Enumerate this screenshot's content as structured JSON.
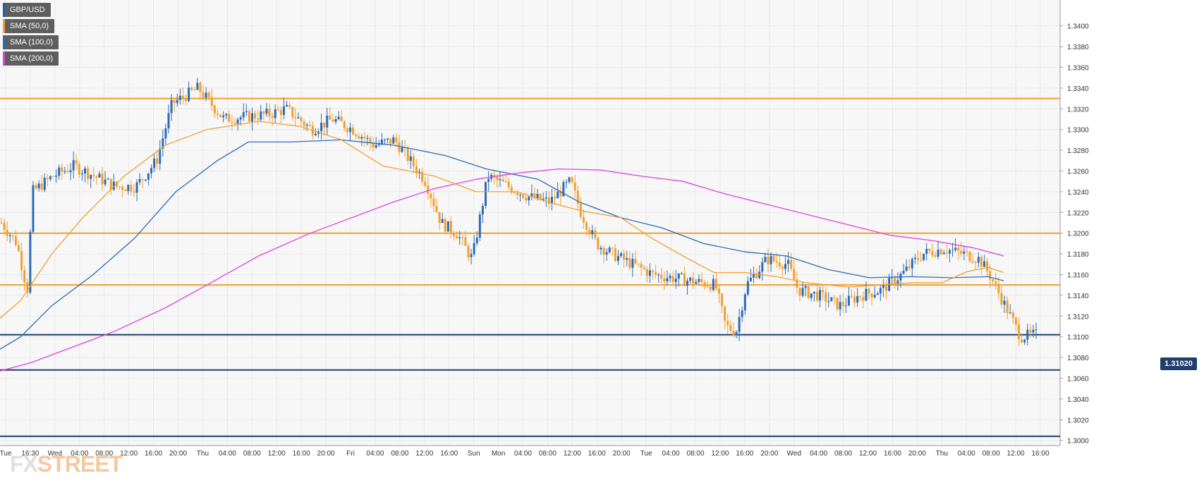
{
  "legend": [
    {
      "label": "GBP/USD",
      "color": "#1f5fb5"
    },
    {
      "label": "SMA (50,0)",
      "color": "#f0a030"
    },
    {
      "label": "SMA (100,0)",
      "color": "#2d6bb5"
    },
    {
      "label": "SMA (200,0)",
      "color": "#e040e0"
    }
  ],
  "watermark": {
    "part1": "FX",
    "part2": "STREET"
  },
  "current_price_label": "1.31020",
  "colors": {
    "bull": "#2d6bb5",
    "bear": "#f0a030",
    "sma50": "#f0a030",
    "sma100": "#2d6bb5",
    "sma200": "#e040e0",
    "level_orange": "#f0a030",
    "level_navy": "#1f3e6b",
    "grid": "#e8e8e8",
    "axis_text": "#333333"
  },
  "chart_data": {
    "type": "candlestick",
    "y_axis": {
      "min": 1.2995,
      "max": 1.3425,
      "ticks": [
        "1.3000",
        "1.3020",
        "1.3040",
        "1.3060",
        "1.3080",
        "1.3100",
        "1.3120",
        "1.3140",
        "1.3160",
        "1.3180",
        "1.3200",
        "1.3220",
        "1.3240",
        "1.3260",
        "1.3280",
        "1.3300",
        "1.3320",
        "1.3340",
        "1.3360",
        "1.3380",
        "1.3400"
      ]
    },
    "x_ticks": [
      "Tue",
      "16:30",
      "Wed",
      "04:00",
      "08:00",
      "12:00",
      "16:00",
      "20:00",
      "Thu",
      "04:00",
      "08:00",
      "12:00",
      "16:00",
      "20:00",
      "Fri",
      "04:00",
      "08:00",
      "12:00",
      "16:00",
      "Sun",
      "Mon",
      "04:00",
      "08:00",
      "12:00",
      "16:00",
      "20:00",
      "Tue",
      "04:00",
      "08:00",
      "12:00",
      "16:00",
      "20:00",
      "Wed",
      "04:00",
      "08:00",
      "12:00",
      "16:00",
      "20:00",
      "Thu",
      "04:00",
      "08:00",
      "12:00",
      "16:00"
    ],
    "horizontal_levels": [
      {
        "value": 1.333,
        "kind": "resistance"
      },
      {
        "value": 1.32,
        "kind": "resistance"
      },
      {
        "value": 1.315,
        "kind": "resistance"
      },
      {
        "value": 1.3102,
        "kind": "current"
      },
      {
        "value": 1.3068,
        "kind": "support"
      },
      {
        "value": 1.3004,
        "kind": "support"
      }
    ],
    "price_path": [
      [
        0,
        1.321
      ],
      [
        0.015,
        1.319
      ],
      [
        0.025,
        1.3145
      ],
      [
        0.03,
        1.324
      ],
      [
        0.05,
        1.3255
      ],
      [
        0.07,
        1.3265
      ],
      [
        0.09,
        1.3255
      ],
      [
        0.11,
        1.3245
      ],
      [
        0.13,
        1.3245
      ],
      [
        0.15,
        1.327
      ],
      [
        0.165,
        1.3325
      ],
      [
        0.19,
        1.334
      ],
      [
        0.215,
        1.331
      ],
      [
        0.26,
        1.3315
      ],
      [
        0.275,
        1.332
      ],
      [
        0.3,
        1.33
      ],
      [
        0.32,
        1.331
      ],
      [
        0.34,
        1.33
      ],
      [
        0.36,
        1.3285
      ],
      [
        0.38,
        1.329
      ],
      [
        0.41,
        1.325
      ],
      [
        0.425,
        1.321
      ],
      [
        0.44,
        1.32
      ],
      [
        0.455,
        1.3175
      ],
      [
        0.47,
        1.3255
      ],
      [
        0.49,
        1.3245
      ],
      [
        0.51,
        1.3235
      ],
      [
        0.53,
        1.323
      ],
      [
        0.55,
        1.325
      ],
      [
        0.56,
        1.322
      ],
      [
        0.575,
        1.319
      ],
      [
        0.59,
        1.318
      ],
      [
        0.61,
        1.317
      ],
      [
        0.63,
        1.316
      ],
      [
        0.66,
        1.3155
      ],
      [
        0.69,
        1.315
      ],
      [
        0.7,
        1.311
      ],
      [
        0.71,
        1.3105
      ],
      [
        0.72,
        1.315
      ],
      [
        0.74,
        1.3175
      ],
      [
        0.76,
        1.317
      ],
      [
        0.77,
        1.3145
      ],
      [
        0.79,
        1.314
      ],
      [
        0.81,
        1.313
      ],
      [
        0.83,
        1.314
      ],
      [
        0.85,
        1.3145
      ],
      [
        0.87,
        1.316
      ],
      [
        0.89,
        1.318
      ],
      [
        0.91,
        1.3185
      ],
      [
        0.93,
        1.318
      ],
      [
        0.945,
        1.3175
      ],
      [
        0.955,
        1.316
      ],
      [
        0.965,
        1.314
      ],
      [
        0.975,
        1.312
      ],
      [
        0.985,
        1.31
      ],
      [
        1.0,
        1.3102
      ]
    ],
    "sma50": [
      [
        0,
        1.3118
      ],
      [
        0.02,
        1.3135
      ],
      [
        0.05,
        1.318
      ],
      [
        0.08,
        1.3215
      ],
      [
        0.12,
        1.3255
      ],
      [
        0.16,
        1.3285
      ],
      [
        0.2,
        1.33
      ],
      [
        0.25,
        1.3308
      ],
      [
        0.29,
        1.3303
      ],
      [
        0.33,
        1.329
      ],
      [
        0.37,
        1.3265
      ],
      [
        0.42,
        1.3255
      ],
      [
        0.46,
        1.324
      ],
      [
        0.5,
        1.324
      ],
      [
        0.53,
        1.323
      ],
      [
        0.56,
        1.3222
      ],
      [
        0.6,
        1.3215
      ],
      [
        0.63,
        1.3195
      ],
      [
        0.66,
        1.3178
      ],
      [
        0.69,
        1.3162
      ],
      [
        0.72,
        1.3162
      ],
      [
        0.75,
        1.3158
      ],
      [
        0.78,
        1.3152
      ],
      [
        0.82,
        1.3148
      ],
      [
        0.85,
        1.315
      ],
      [
        0.88,
        1.3152
      ],
      [
        0.91,
        1.3152
      ],
      [
        0.935,
        1.3163
      ],
      [
        0.955,
        1.3167
      ],
      [
        0.97,
        1.3162
      ]
    ],
    "sma100": [
      [
        0,
        1.3088
      ],
      [
        0.02,
        1.31
      ],
      [
        0.05,
        1.313
      ],
      [
        0.09,
        1.316
      ],
      [
        0.13,
        1.3195
      ],
      [
        0.17,
        1.324
      ],
      [
        0.21,
        1.327
      ],
      [
        0.24,
        1.3288
      ],
      [
        0.28,
        1.3288
      ],
      [
        0.33,
        1.329
      ],
      [
        0.38,
        1.3285
      ],
      [
        0.43,
        1.3275
      ],
      [
        0.47,
        1.3262
      ],
      [
        0.52,
        1.3252
      ],
      [
        0.56,
        1.323
      ],
      [
        0.6,
        1.3215
      ],
      [
        0.64,
        1.3205
      ],
      [
        0.68,
        1.319
      ],
      [
        0.72,
        1.3182
      ],
      [
        0.76,
        1.3178
      ],
      [
        0.8,
        1.3165
      ],
      [
        0.84,
        1.3157
      ],
      [
        0.88,
        1.3158
      ],
      [
        0.92,
        1.3157
      ],
      [
        0.955,
        1.3158
      ],
      [
        0.97,
        1.3154
      ]
    ],
    "sma200": [
      [
        0,
        1.3067
      ],
      [
        0.03,
        1.3075
      ],
      [
        0.07,
        1.309
      ],
      [
        0.11,
        1.3105
      ],
      [
        0.16,
        1.3128
      ],
      [
        0.2,
        1.315
      ],
      [
        0.25,
        1.3178
      ],
      [
        0.3,
        1.32
      ],
      [
        0.34,
        1.3215
      ],
      [
        0.38,
        1.323
      ],
      [
        0.42,
        1.3243
      ],
      [
        0.46,
        1.3252
      ],
      [
        0.5,
        1.3258
      ],
      [
        0.54,
        1.3262
      ],
      [
        0.58,
        1.3261
      ],
      [
        0.62,
        1.3255
      ],
      [
        0.66,
        1.325
      ],
      [
        0.7,
        1.3238
      ],
      [
        0.74,
        1.3228
      ],
      [
        0.78,
        1.3218
      ],
      [
        0.82,
        1.3208
      ],
      [
        0.86,
        1.3198
      ],
      [
        0.9,
        1.3193
      ],
      [
        0.94,
        1.3186
      ],
      [
        0.97,
        1.3178
      ]
    ]
  }
}
